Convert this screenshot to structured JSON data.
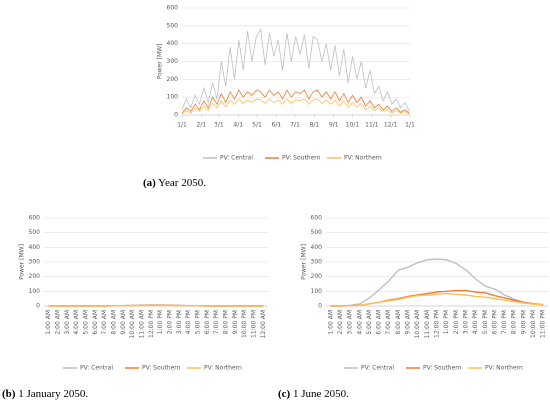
{
  "chart_data": [
    {
      "type": "line",
      "caption_label": "(a)",
      "caption": "Year 2050.",
      "y_label": "Power [MW]",
      "x": [
        0,
        7,
        14,
        21,
        28,
        35,
        42,
        49,
        56,
        63,
        70,
        77,
        84,
        91,
        98,
        105,
        112,
        119,
        126,
        133,
        140,
        147,
        154,
        161,
        168,
        175,
        182,
        189,
        196,
        203,
        210,
        217,
        224,
        231,
        238,
        245,
        252,
        259,
        266,
        273,
        280,
        287,
        294,
        301,
        308,
        315,
        322,
        329,
        336,
        343,
        350,
        357,
        364
      ],
      "xlim": [
        0,
        365
      ],
      "xticks": [
        {
          "value": 0,
          "label": "1/1"
        },
        {
          "value": 31,
          "label": "2/1"
        },
        {
          "value": 59,
          "label": "3/1"
        },
        {
          "value": 90,
          "label": "4/1"
        },
        {
          "value": 120,
          "label": "5/1"
        },
        {
          "value": 151,
          "label": "6/1"
        },
        {
          "value": 181,
          "label": "7/1"
        },
        {
          "value": 212,
          "label": "8/1"
        },
        {
          "value": 243,
          "label": "9/1"
        },
        {
          "value": 273,
          "label": "10/1"
        },
        {
          "value": 304,
          "label": "11/1"
        },
        {
          "value": 334,
          "label": "12/1"
        },
        {
          "value": 365,
          "label": "1/1"
        }
      ],
      "ylim": [
        0,
        600
      ],
      "yticks": [
        0,
        100,
        200,
        300,
        400,
        500,
        600
      ],
      "grid": true,
      "series": [
        {
          "name": "PV: Central",
          "color": "#bfbfbf",
          "values": [
            30,
            90,
            40,
            110,
            60,
            150,
            70,
            180,
            90,
            300,
            160,
            380,
            200,
            420,
            250,
            470,
            300,
            440,
            480,
            280,
            460,
            330,
            420,
            250,
            460,
            300,
            440,
            340,
            450,
            260,
            440,
            420,
            300,
            400,
            250,
            390,
            220,
            370,
            180,
            330,
            200,
            300,
            150,
            250,
            120,
            160,
            80,
            130,
            60,
            90,
            40,
            70,
            20
          ]
        },
        {
          "name": "PV: Southern",
          "color": "#ed7d31",
          "values": [
            10,
            40,
            20,
            60,
            30,
            80,
            40,
            100,
            60,
            120,
            70,
            130,
            90,
            140,
            100,
            130,
            110,
            140,
            130,
            100,
            140,
            110,
            130,
            90,
            140,
            100,
            130,
            120,
            140,
            90,
            130,
            140,
            100,
            130,
            90,
            130,
            80,
            120,
            70,
            110,
            70,
            100,
            50,
            80,
            40,
            60,
            30,
            50,
            20,
            40,
            15,
            30,
            10
          ]
        },
        {
          "name": "PV: Northern",
          "color": "#fbbf5c",
          "values": [
            5,
            25,
            10,
            40,
            20,
            50,
            25,
            65,
            40,
            80,
            45,
            85,
            60,
            90,
            65,
            85,
            70,
            90,
            85,
            65,
            90,
            70,
            85,
            60,
            90,
            65,
            85,
            80,
            90,
            60,
            85,
            90,
            65,
            85,
            60,
            85,
            50,
            80,
            45,
            70,
            45,
            65,
            30,
            50,
            25,
            40,
            20,
            30,
            10,
            25,
            10,
            20,
            5
          ]
        }
      ]
    },
    {
      "type": "line",
      "caption_label": "(b)",
      "caption": "1 January 2050.",
      "y_label": "Power [MW]",
      "categories": [
        "1:00 AM",
        "2:00 AM",
        "3:00 AM",
        "4:00 AM",
        "5:00 AM",
        "6:00 AM",
        "7:00 AM",
        "8:00 AM",
        "9:00 AM",
        "10:00 AM",
        "11:00 AM",
        "12:00 PM",
        "1:00 PM",
        "2:00 PM",
        "3:00 PM",
        "4:00 PM",
        "5:00 PM",
        "6:00 PM",
        "7:00 PM",
        "8:00 PM",
        "9:00 PM",
        "10:00 PM",
        "11:00 PM",
        "12:00 AM"
      ],
      "ylim": [
        0,
        600
      ],
      "yticks": [
        0,
        100,
        200,
        300,
        400,
        500,
        600
      ],
      "grid": true,
      "series": [
        {
          "name": "PV: Central",
          "color": "#bfbfbf",
          "values": [
            0,
            0,
            0,
            0,
            0,
            0,
            0,
            1,
            3,
            5,
            6,
            7,
            7,
            6,
            5,
            3,
            1,
            0,
            0,
            0,
            0,
            0,
            0,
            0
          ]
        },
        {
          "name": "PV: Southern",
          "color": "#ed7d31",
          "values": [
            0,
            0,
            0,
            0,
            0,
            0,
            0,
            1,
            2,
            3,
            4,
            4,
            4,
            4,
            3,
            2,
            1,
            0,
            0,
            0,
            0,
            0,
            0,
            0
          ]
        },
        {
          "name": "PV: Northern",
          "color": "#fbbf5c",
          "values": [
            0,
            0,
            0,
            0,
            0,
            0,
            0,
            1,
            2,
            3,
            3,
            3,
            3,
            3,
            2,
            2,
            1,
            0,
            0,
            0,
            0,
            0,
            0,
            0
          ]
        }
      ]
    },
    {
      "type": "line",
      "caption_label": "(c)",
      "caption": "1 June 2050.",
      "y_label": "Power [MW]",
      "categories": [
        "1:00 AM",
        "2:00 AM",
        "3:00 AM",
        "4:00 AM",
        "5:00 AM",
        "6:00 AM",
        "7:00 AM",
        "8:00 AM",
        "9:00 AM",
        "10:00 AM",
        "11:00 AM",
        "12:00 PM",
        "1:00 PM",
        "2:00 PM",
        "3:00 PM",
        "4:00 PM",
        "5:00 PM",
        "6:00 PM",
        "7:00 PM",
        "8:00 PM",
        "9:00 PM",
        "10:00 PM",
        "11:00 PM"
      ],
      "ylim": [
        0,
        600
      ],
      "yticks": [
        0,
        100,
        200,
        300,
        400,
        500,
        600
      ],
      "grid": true,
      "series": [
        {
          "name": "PV: Central",
          "color": "#bfbfbf",
          "values": [
            0,
            0,
            5,
            15,
            55,
            110,
            170,
            245,
            265,
            295,
            315,
            320,
            315,
            290,
            245,
            185,
            135,
            115,
            75,
            45,
            25,
            15,
            8
          ]
        },
        {
          "name": "PV: Southern",
          "color": "#ed7d31",
          "values": [
            0,
            0,
            2,
            5,
            15,
            25,
            40,
            50,
            65,
            75,
            85,
            95,
            100,
            105,
            105,
            95,
            90,
            70,
            55,
            40,
            25,
            15,
            10
          ]
        },
        {
          "name": "PV: Northern",
          "color": "#fbbf5c",
          "values": [
            0,
            0,
            2,
            5,
            15,
            25,
            35,
            45,
            60,
            70,
            75,
            80,
            85,
            80,
            75,
            65,
            60,
            50,
            40,
            30,
            20,
            12,
            8
          ]
        }
      ]
    }
  ]
}
